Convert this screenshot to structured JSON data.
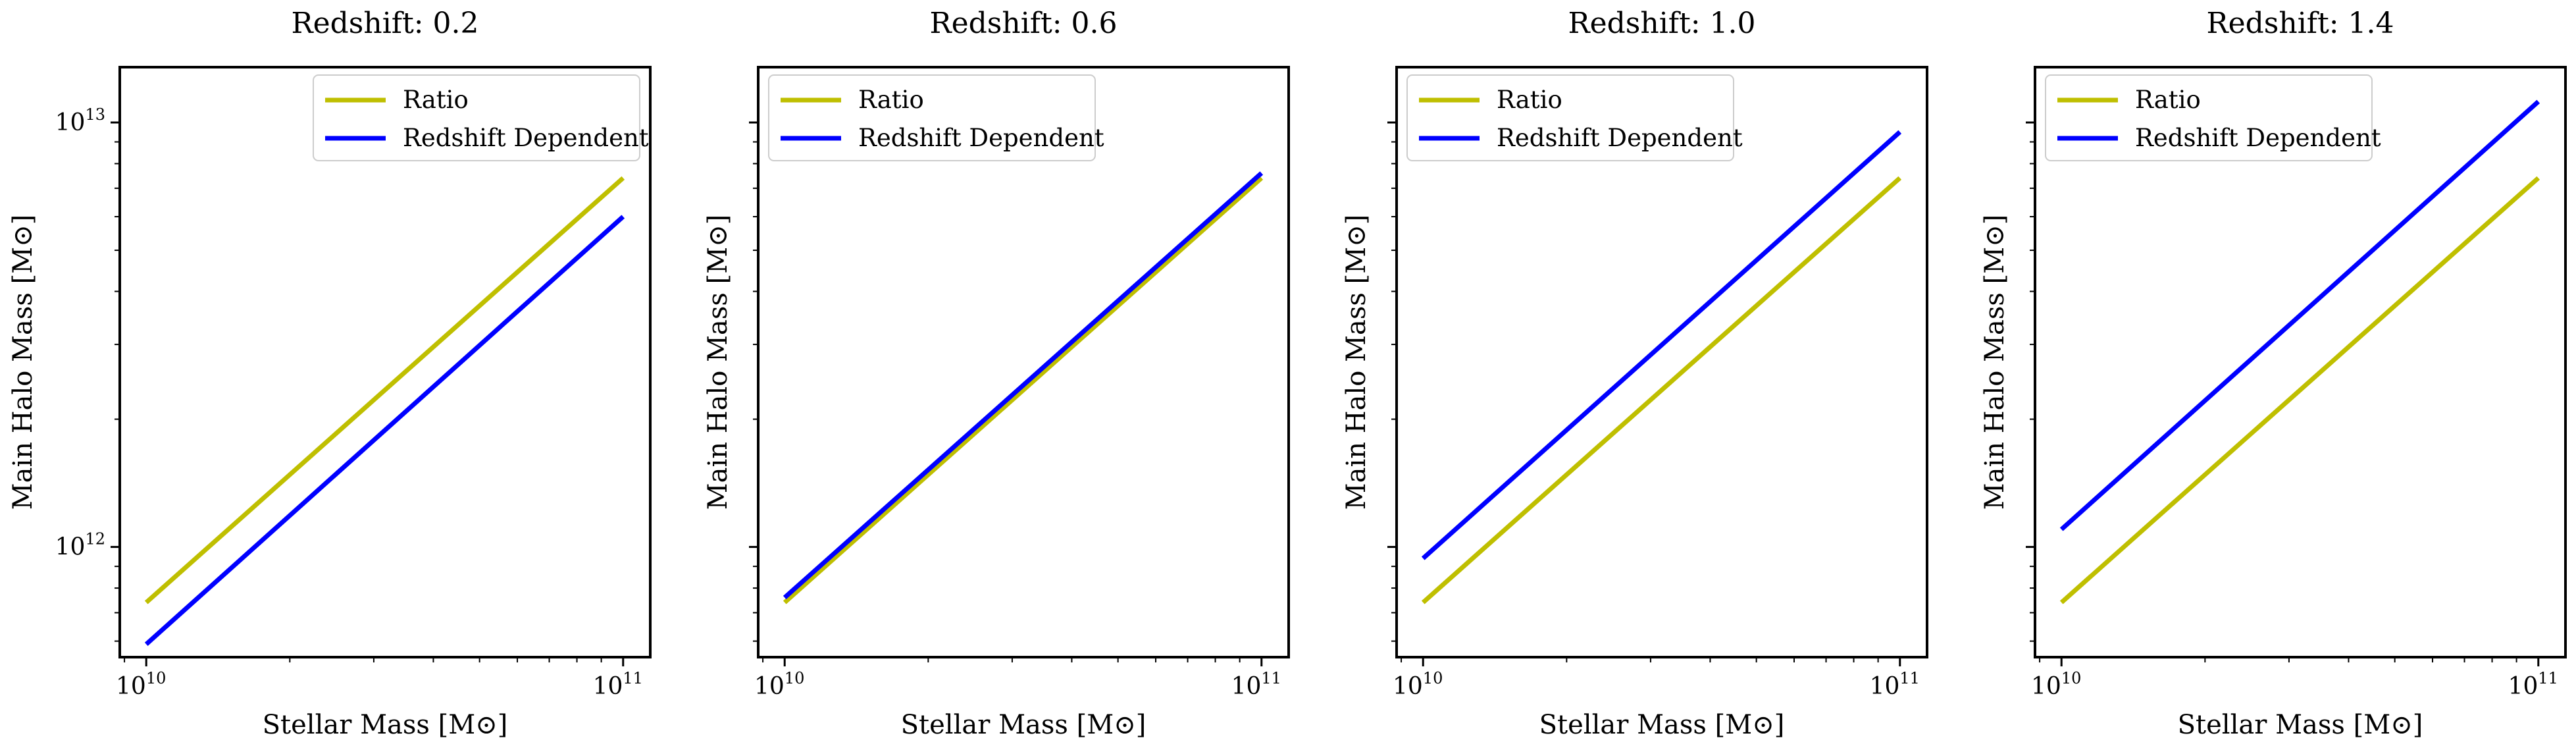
{
  "chart_data": [
    {
      "type": "line",
      "title": "Redshift: 0.2",
      "xlabel": "Stellar Mass [M⊙]",
      "ylabel": "Main Halo Mass [M⊙]",
      "xscale": "log",
      "yscale": "log",
      "xlim": [
        8800000000.0,
        114000000000.0
      ],
      "ylim": [
        550000000000.0,
        13500000000000.0
      ],
      "xticks": [
        {
          "base": "10",
          "exp": "10"
        },
        {
          "base": "10",
          "exp": "11"
        }
      ],
      "yticks": [
        {
          "base": "10",
          "exp": "12"
        },
        {
          "base": "10",
          "exp": "13"
        }
      ],
      "grid": false,
      "legend_position": "top-right",
      "series": [
        {
          "name": "Ratio",
          "color": "#bfbf00",
          "x": [
            10000000000.0,
            100000000000.0
          ],
          "y": [
            740000000000.0,
            7400000000000.0
          ]
        },
        {
          "name": "Redshift Dependent",
          "color": "#0000ff",
          "x": [
            10000000000.0,
            100000000000.0
          ],
          "y": [
            590000000000.0,
            6000000000000.0
          ]
        }
      ]
    },
    {
      "type": "line",
      "title": "Redshift: 0.6",
      "xlabel": "Stellar Mass [M⊙]",
      "ylabel": "Main Halo Mass [M⊙]",
      "xscale": "log",
      "yscale": "log",
      "xlim": [
        8800000000.0,
        114000000000.0
      ],
      "ylim": [
        550000000000.0,
        13500000000000.0
      ],
      "xticks": [
        {
          "base": "10",
          "exp": "10"
        },
        {
          "base": "10",
          "exp": "11"
        }
      ],
      "yticks": [],
      "grid": false,
      "legend_position": "top-left",
      "series": [
        {
          "name": "Ratio",
          "color": "#bfbf00",
          "x": [
            10000000000.0,
            100000000000.0
          ],
          "y": [
            740000000000.0,
            7400000000000.0
          ]
        },
        {
          "name": "Redshift Dependent",
          "color": "#0000ff",
          "x": [
            10000000000.0,
            100000000000.0
          ],
          "y": [
            760000000000.0,
            7600000000000.0
          ]
        }
      ]
    },
    {
      "type": "line",
      "title": "Redshift: 1.0",
      "xlabel": "Stellar Mass [M⊙]",
      "ylabel": "Main Halo Mass [M⊙]",
      "xscale": "log",
      "yscale": "log",
      "xlim": [
        8800000000.0,
        114000000000.0
      ],
      "ylim": [
        550000000000.0,
        13500000000000.0
      ],
      "xticks": [
        {
          "base": "10",
          "exp": "10"
        },
        {
          "base": "10",
          "exp": "11"
        }
      ],
      "yticks": [],
      "grid": false,
      "legend_position": "top-left",
      "series": [
        {
          "name": "Ratio",
          "color": "#bfbf00",
          "x": [
            10000000000.0,
            100000000000.0
          ],
          "y": [
            740000000000.0,
            7400000000000.0
          ]
        },
        {
          "name": "Redshift Dependent",
          "color": "#0000ff",
          "x": [
            10000000000.0,
            100000000000.0
          ],
          "y": [
            940000000000.0,
            9500000000000.0
          ]
        }
      ]
    },
    {
      "type": "line",
      "title": "Redshift: 1.4",
      "xlabel": "Stellar Mass [M⊙]",
      "ylabel": "Main Halo Mass [M⊙]",
      "xscale": "log",
      "yscale": "log",
      "xlim": [
        8800000000.0,
        114000000000.0
      ],
      "ylim": [
        550000000000.0,
        13500000000000.0
      ],
      "xticks": [
        {
          "base": "10",
          "exp": "10"
        },
        {
          "base": "10",
          "exp": "11"
        }
      ],
      "yticks": [],
      "grid": false,
      "legend_position": "top-left",
      "series": [
        {
          "name": "Ratio",
          "color": "#bfbf00",
          "x": [
            10000000000.0,
            100000000000.0
          ],
          "y": [
            740000000000.0,
            7400000000000.0
          ]
        },
        {
          "name": "Redshift Dependent",
          "color": "#0000ff",
          "x": [
            10000000000.0,
            100000000000.0
          ],
          "y": [
            1100000000000.0,
            11200000000000.0
          ]
        }
      ]
    }
  ]
}
